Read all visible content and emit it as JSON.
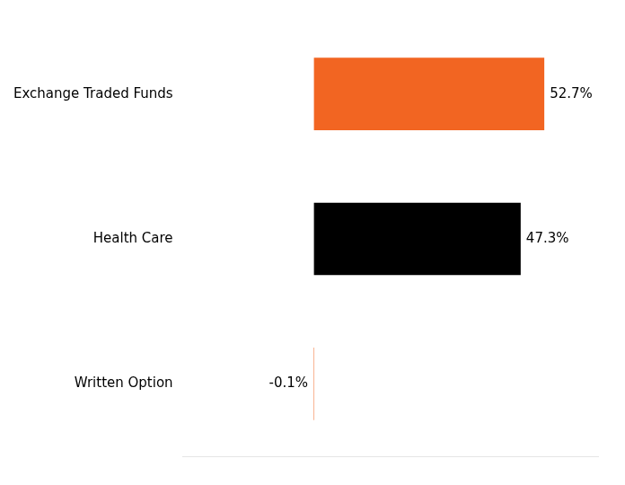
{
  "chart_data": {
    "type": "bar",
    "orientation": "horizontal",
    "categories": [
      "Exchange Traded Funds",
      "Health Care",
      "Written Option"
    ],
    "values": [
      52.7,
      47.3,
      -0.1
    ],
    "value_labels": [
      "52.7%",
      "47.3%",
      "-0.1%"
    ],
    "colors": [
      "#f26522",
      "#000000",
      "#f26522"
    ],
    "xlim": [
      -30,
      65
    ],
    "grid": false,
    "data_labels": true,
    "tick_labels": "y"
  }
}
